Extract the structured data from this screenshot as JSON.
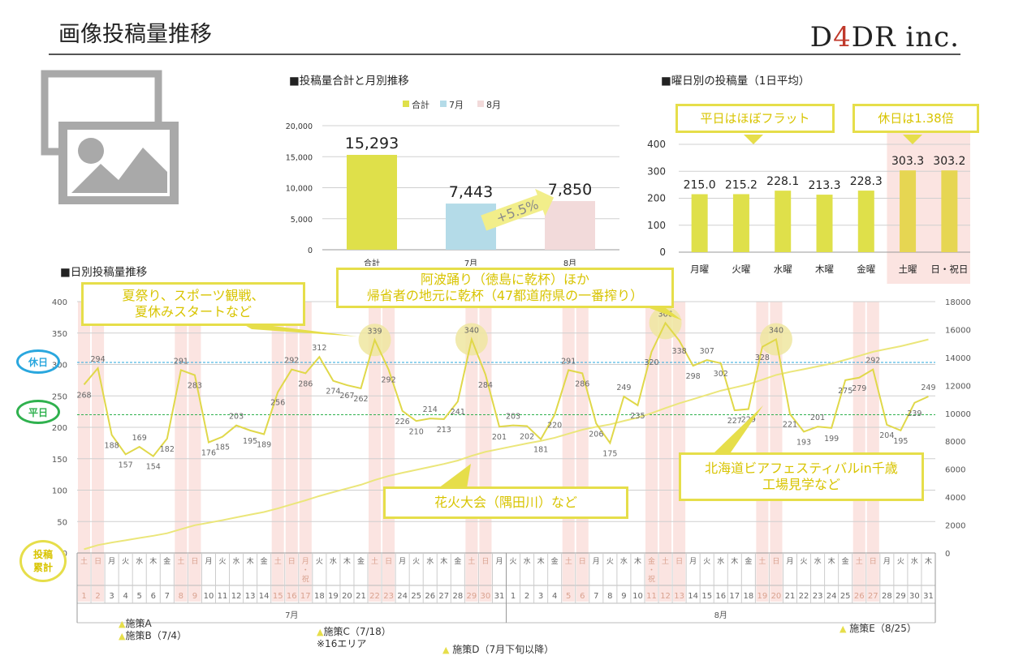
{
  "header": {
    "title": "画像投稿量推移",
    "logo_left": "D",
    "logo_four": "4",
    "logo_right": "DR inc."
  },
  "sections": {
    "total": "■投稿量合計と月別推移",
    "weekday": "■曜日別の投稿量（1日平均）",
    "daily": "■日別投稿量推移"
  },
  "chart_data": [
    {
      "type": "bar",
      "title": "■投稿量合計と月別推移",
      "categories": [
        "合計",
        "7月",
        "8月"
      ],
      "values": [
        15293,
        7443,
        7850
      ],
      "value_labels": [
        "15,293",
        "7,443",
        "7,850"
      ],
      "legend": [
        "合計",
        "7月",
        "8月"
      ],
      "colors": [
        "#dfe04a",
        "#b4dbe8",
        "#f2dada"
      ],
      "ylim": [
        0,
        20000
      ],
      "yticks": [
        "0",
        "5,000",
        "10,000",
        "15,000",
        "20,000"
      ],
      "annotation": "+5.5%"
    },
    {
      "type": "bar",
      "title": "■曜日別の投稿量（1日平均）",
      "categories": [
        "月曜",
        "火曜",
        "水曜",
        "木曜",
        "金曜",
        "土曜",
        "日・祝日"
      ],
      "values": [
        215.0,
        215.2,
        228.1,
        213.3,
        228.3,
        303.3,
        303.2
      ],
      "value_labels": [
        "215.0",
        "215.2",
        "228.1",
        "213.3",
        "228.3",
        "303.3",
        "303.2"
      ],
      "ylim": [
        0,
        400
      ],
      "yticks": [
        "0",
        "100",
        "200",
        "300",
        "400"
      ],
      "callouts": [
        "平日はほぼフラット",
        "休日は1.38倍"
      ]
    },
    {
      "type": "line",
      "title": "■日別投稿量推移",
      "days": [
        1,
        2,
        3,
        4,
        5,
        6,
        7,
        8,
        9,
        10,
        11,
        12,
        13,
        14,
        15,
        16,
        17,
        18,
        19,
        20,
        21,
        22,
        23,
        24,
        25,
        26,
        27,
        28,
        29,
        30,
        31,
        1,
        2,
        3,
        4,
        5,
        6,
        7,
        8,
        9,
        10,
        11,
        12,
        13,
        14,
        15,
        16,
        17,
        18,
        19,
        20,
        21,
        22,
        23,
        24,
        25,
        26,
        27,
        28,
        29,
        30,
        31
      ],
      "weekdays": [
        "土",
        "日",
        "月",
        "火",
        "水",
        "木",
        "金",
        "土",
        "日",
        "月",
        "火",
        "水",
        "木",
        "金",
        "土",
        "日",
        "月・祝",
        "火",
        "水",
        "木",
        "金",
        "土",
        "日",
        "月",
        "火",
        "水",
        "木",
        "金",
        "土",
        "日",
        "月",
        "火",
        "水",
        "木",
        "金",
        "土",
        "日",
        "月",
        "火",
        "水",
        "木",
        "金・祝",
        "土",
        "日",
        "月",
        "火",
        "水",
        "木",
        "金",
        "土",
        "日",
        "月",
        "火",
        "水",
        "木",
        "金",
        "土",
        "日",
        "月",
        "火",
        "水",
        "木"
      ],
      "holiday_indices": [
        0,
        1,
        7,
        8,
        14,
        15,
        16,
        21,
        22,
        28,
        29,
        35,
        36,
        41,
        42,
        43,
        49,
        50,
        56,
        57
      ],
      "values": [
        268,
        294,
        188,
        157,
        169,
        154,
        182,
        291,
        283,
        176,
        185,
        203,
        195,
        189,
        256,
        292,
        286,
        312,
        274,
        267,
        262,
        339,
        292,
        226,
        210,
        214,
        213,
        241,
        340,
        284,
        201,
        203,
        202,
        181,
        220,
        291,
        286,
        206,
        175,
        249,
        235,
        320,
        366,
        338,
        298,
        307,
        302,
        227,
        229,
        328,
        340,
        221,
        193,
        201,
        199,
        275,
        279,
        292,
        204,
        195,
        239,
        249
      ],
      "ylim": [
        0,
        400
      ],
      "yticks": [
        "0",
        "50",
        "100",
        "150",
        "200",
        "250",
        "300",
        "350",
        "400"
      ],
      "y2lim": [
        0,
        18000
      ],
      "y2ticks": [
        "0",
        "2000",
        "4000",
        "6000",
        "8000",
        "10000",
        "12000",
        "14000",
        "16000",
        "18000"
      ],
      "cumulative_end": 15293,
      "months": [
        "7月",
        "8月"
      ],
      "ref_lines": {
        "holiday": 303.3,
        "weekday": 220
      },
      "highlight_indices": [
        21,
        28,
        42,
        50
      ]
    }
  ],
  "legend_labels": {
    "holiday": "休日",
    "weekday": "平日",
    "cumulative": "投稿\n累計"
  },
  "callouts": {
    "weekday_flat": "平日はほぼフラット",
    "holiday_ratio": "休日は1.38倍",
    "summer": "夏祭り、スポーツ観戦、\n夏休みスタートなど",
    "awa": "阿波踊り（徳島に乾杯）ほか\n帰省者の地元に乾杯（47都道府県の一番搾り）",
    "fireworks": "花火大会（隅田川）など",
    "hokkaido": "北海道ビアフェスティバルin千歳\n工場見学など"
  },
  "notes": {
    "a": "施策A",
    "b": "施策B（7/4）",
    "c": "施策C（7/18）",
    "c_sub": "※16エリア",
    "d": "施策D（7月下旬以降）",
    "e": "施策E（8/25）"
  }
}
